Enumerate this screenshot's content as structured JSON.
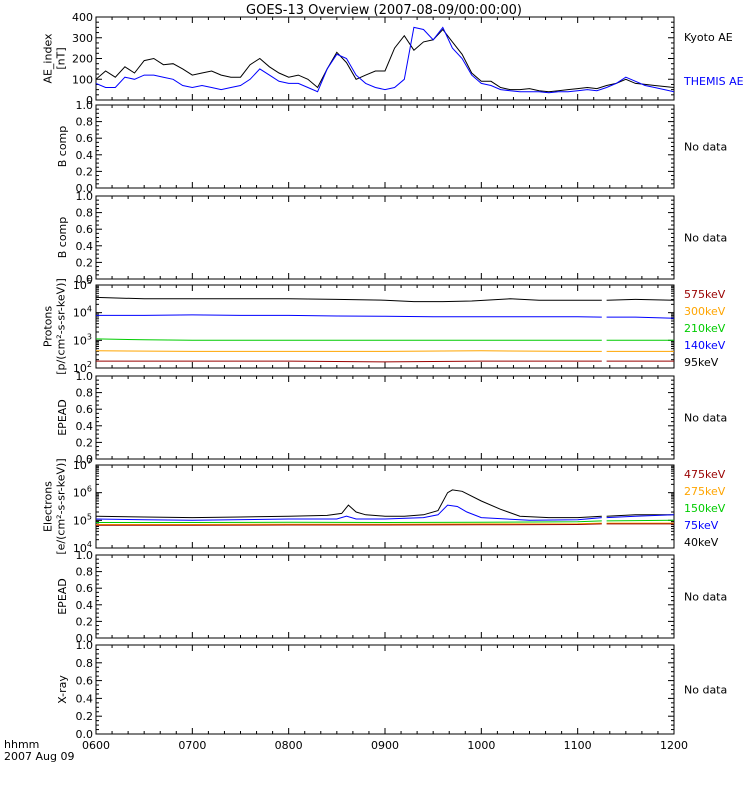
{
  "title": "GOES-13 Overview (2007-08-09/00:00:00)",
  "x_axis": {
    "ticks": [
      "0600",
      "0700",
      "0800",
      "0900",
      "1000",
      "1100",
      "1200"
    ],
    "start_hour": 6,
    "end_hour": 12,
    "label_line1": "hhmm",
    "label_line2": "2007 Aug 09"
  },
  "colors": {
    "black": "#000000",
    "blue": "#0000ff",
    "green": "#00cc00",
    "orange": "#ffa500",
    "darkred": "#990000"
  },
  "no_data_text": "No data",
  "chart_data": [
    {
      "id": "ae",
      "type": "line",
      "ylabel": [
        "AE_index",
        "[nT]"
      ],
      "ylim": [
        0,
        400
      ],
      "yscale": "linear",
      "yticks": [
        "0",
        "100",
        "200",
        "300",
        "400"
      ],
      "legend": [
        {
          "label": "Kyoto AE",
          "color": "#000000"
        },
        {
          "label": "THEMIS AE",
          "color": "#0000ff"
        }
      ],
      "series": [
        {
          "name": "Kyoto AE",
          "color": "#000000",
          "x": [
            6.0,
            6.1,
            6.2,
            6.3,
            6.4,
            6.5,
            6.6,
            6.7,
            6.8,
            6.9,
            7.0,
            7.1,
            7.2,
            7.3,
            7.4,
            7.5,
            7.6,
            7.7,
            7.8,
            7.9,
            8.0,
            8.1,
            8.2,
            8.3,
            8.4,
            8.5,
            8.6,
            8.7,
            8.8,
            8.9,
            9.0,
            9.1,
            9.2,
            9.3,
            9.4,
            9.5,
            9.6,
            9.7,
            9.8,
            9.9,
            10.0,
            10.1,
            10.2,
            10.3,
            10.4,
            10.5,
            10.6,
            10.7,
            10.8,
            10.9,
            11.0,
            11.1,
            11.2,
            11.3,
            11.4,
            11.5,
            11.6,
            11.7,
            11.8,
            11.9,
            12.0
          ],
          "values": [
            100,
            140,
            110,
            160,
            130,
            190,
            200,
            170,
            175,
            150,
            120,
            130,
            140,
            120,
            110,
            110,
            170,
            200,
            160,
            130,
            110,
            120,
            100,
            60,
            150,
            230,
            180,
            100,
            120,
            140,
            140,
            250,
            310,
            240,
            280,
            290,
            340,
            280,
            220,
            130,
            90,
            90,
            60,
            50,
            50,
            55,
            45,
            40,
            45,
            50,
            55,
            60,
            55,
            70,
            80,
            100,
            80,
            75,
            70,
            65,
            60
          ]
        },
        {
          "name": "THEMIS AE",
          "color": "#0000ff",
          "x": [
            6.0,
            6.1,
            6.2,
            6.3,
            6.4,
            6.5,
            6.6,
            6.7,
            6.8,
            6.9,
            7.0,
            7.1,
            7.2,
            7.3,
            7.4,
            7.5,
            7.6,
            7.7,
            7.8,
            7.9,
            8.0,
            8.1,
            8.2,
            8.3,
            8.4,
            8.5,
            8.6,
            8.7,
            8.8,
            8.9,
            9.0,
            9.1,
            9.2,
            9.3,
            9.4,
            9.5,
            9.6,
            9.7,
            9.8,
            9.9,
            10.0,
            10.1,
            10.2,
            10.3,
            10.4,
            10.5,
            10.6,
            10.7,
            10.8,
            10.9,
            11.0,
            11.1,
            11.2,
            11.3,
            11.4,
            11.5,
            11.6,
            11.7,
            11.8,
            11.9,
            12.0
          ],
          "values": [
            80,
            60,
            60,
            110,
            100,
            120,
            120,
            110,
            100,
            70,
            60,
            70,
            60,
            50,
            60,
            70,
            100,
            150,
            120,
            90,
            80,
            80,
            60,
            40,
            150,
            220,
            200,
            120,
            80,
            60,
            50,
            60,
            100,
            350,
            340,
            290,
            350,
            250,
            200,
            120,
            80,
            70,
            50,
            45,
            40,
            40,
            40,
            35,
            40,
            40,
            45,
            50,
            45,
            60,
            80,
            110,
            90,
            70,
            60,
            50,
            40
          ]
        }
      ]
    },
    {
      "id": "bcomp1",
      "type": "line",
      "empty": true,
      "ylabel": [
        "B comp"
      ],
      "ylim": [
        0,
        1
      ],
      "yscale": "linear",
      "yticks": [
        "0.0",
        "0.2",
        "0.4",
        "0.6",
        "0.8",
        "1.0"
      ]
    },
    {
      "id": "bcomp2",
      "type": "line",
      "empty": true,
      "ylabel": [
        "B comp"
      ],
      "ylim": [
        0,
        1
      ],
      "yscale": "linear",
      "yticks": [
        "0.0",
        "0.2",
        "0.4",
        "0.6",
        "0.8",
        "1.0"
      ]
    },
    {
      "id": "protons",
      "type": "line",
      "ylabel": [
        "Protons",
        "[p/(cm²-s-sr-keV)]"
      ],
      "ylim": [
        2,
        5
      ],
      "yscale": "log10",
      "yticks_log": [
        {
          "base": "10",
          "exp": "2"
        },
        {
          "base": "10",
          "exp": "3"
        },
        {
          "base": "10",
          "exp": "4"
        },
        {
          "base": "10",
          "exp": "5"
        }
      ],
      "legend": [
        {
          "label": "575keV",
          "color": "#990000"
        },
        {
          "label": "300keV",
          "color": "#ffa500"
        },
        {
          "label": "210keV",
          "color": "#00cc00"
        },
        {
          "label": "140keV",
          "color": "#0000ff"
        },
        {
          "label": "95keV",
          "color": "#000000"
        }
      ],
      "gap": [
        11.25,
        11.3
      ],
      "series": [
        {
          "name": "95keV",
          "color": "#000000",
          "x": [
            6.0,
            6.5,
            7.0,
            7.5,
            8.0,
            8.5,
            9.0,
            9.3,
            9.6,
            9.9,
            10.3,
            10.6,
            11.0,
            11.25,
            11.3,
            11.6,
            12.0
          ],
          "values": [
            4.55,
            4.5,
            4.5,
            4.5,
            4.5,
            4.48,
            4.45,
            4.4,
            4.4,
            4.42,
            4.5,
            4.45,
            4.45,
            4.45,
            4.45,
            4.48,
            4.45
          ]
        },
        {
          "name": "140keV",
          "color": "#0000ff",
          "x": [
            6.0,
            6.5,
            7.0,
            7.5,
            8.0,
            8.5,
            9.0,
            9.5,
            10.0,
            10.5,
            11.0,
            11.25,
            11.3,
            11.6,
            12.0
          ],
          "values": [
            3.9,
            3.9,
            3.92,
            3.9,
            3.9,
            3.88,
            3.87,
            3.85,
            3.85,
            3.85,
            3.85,
            3.84,
            3.84,
            3.84,
            3.8
          ]
        },
        {
          "name": "210keV",
          "color": "#00cc00",
          "x": [
            6.0,
            6.5,
            7.0,
            8.0,
            9.0,
            10.0,
            11.0,
            11.25,
            11.3,
            12.0
          ],
          "values": [
            3.05,
            3.02,
            3.0,
            3.0,
            3.0,
            3.0,
            3.0,
            3.0,
            3.0,
            3.0
          ]
        },
        {
          "name": "300keV",
          "color": "#ffa500",
          "x": [
            6.0,
            7.0,
            8.0,
            9.0,
            10.0,
            11.0,
            11.25,
            11.3,
            12.0
          ],
          "values": [
            2.62,
            2.6,
            2.6,
            2.6,
            2.62,
            2.6,
            2.6,
            2.6,
            2.6
          ]
        },
        {
          "name": "575keV",
          "color": "#990000",
          "x": [
            6.0,
            7.0,
            8.0,
            9.0,
            10.0,
            11.0,
            11.25,
            11.3,
            12.0
          ],
          "values": [
            2.25,
            2.25,
            2.25,
            2.22,
            2.25,
            2.25,
            2.25,
            2.25,
            2.25
          ]
        }
      ]
    },
    {
      "id": "epead1",
      "type": "line",
      "empty": true,
      "ylabel": [
        "EPEAD"
      ],
      "ylim": [
        0,
        1
      ],
      "yscale": "linear",
      "yticks": [
        "0.0",
        "0.2",
        "0.4",
        "0.6",
        "0.8",
        "1.0"
      ]
    },
    {
      "id": "electrons",
      "type": "line",
      "ylabel": [
        "Electrons",
        "[e/(cm²-s-sr-keV)]"
      ],
      "ylim": [
        4,
        7
      ],
      "yscale": "log10",
      "yticks_log": [
        {
          "base": "10",
          "exp": "4"
        },
        {
          "base": "10",
          "exp": "5"
        },
        {
          "base": "10",
          "exp": "6"
        },
        {
          "base": "10",
          "exp": "7"
        }
      ],
      "legend": [
        {
          "label": "475keV",
          "color": "#990000"
        },
        {
          "label": "275keV",
          "color": "#ffa500"
        },
        {
          "label": "150keV",
          "color": "#00cc00"
        },
        {
          "label": "75keV",
          "color": "#0000ff"
        },
        {
          "label": "40keV",
          "color": "#000000"
        }
      ],
      "gap": [
        11.25,
        11.3
      ],
      "series": [
        {
          "name": "40keV",
          "color": "#000000",
          "x": [
            6.0,
            6.5,
            7.0,
            7.5,
            8.0,
            8.4,
            8.55,
            8.62,
            8.7,
            8.8,
            9.0,
            9.2,
            9.4,
            9.55,
            9.65,
            9.7,
            9.8,
            10.0,
            10.2,
            10.4,
            10.7,
            11.0,
            11.25,
            11.3,
            11.6,
            12.0
          ],
          "values": [
            5.15,
            5.12,
            5.1,
            5.12,
            5.15,
            5.18,
            5.25,
            5.55,
            5.3,
            5.2,
            5.15,
            5.15,
            5.2,
            5.35,
            6.0,
            6.1,
            6.05,
            5.7,
            5.4,
            5.15,
            5.1,
            5.1,
            5.15,
            5.15,
            5.2,
            5.2
          ]
        },
        {
          "name": "75keV",
          "color": "#0000ff",
          "x": [
            6.0,
            6.5,
            7.0,
            8.0,
            8.5,
            8.6,
            8.7,
            9.0,
            9.4,
            9.55,
            9.65,
            9.75,
            9.85,
            10.0,
            10.5,
            11.0,
            11.25,
            11.3,
            11.6,
            12.0
          ],
          "values": [
            5.05,
            5.02,
            5.0,
            5.05,
            5.05,
            5.15,
            5.05,
            5.05,
            5.1,
            5.2,
            5.55,
            5.5,
            5.3,
            5.1,
            5.0,
            5.02,
            5.1,
            5.1,
            5.15,
            5.2
          ]
        },
        {
          "name": "150keV",
          "color": "#00cc00",
          "x": [
            6.0,
            7.0,
            8.0,
            9.0,
            10.0,
            11.0,
            11.25,
            11.3,
            12.0
          ],
          "values": [
            4.92,
            4.92,
            4.93,
            4.92,
            4.93,
            4.95,
            4.98,
            4.98,
            5.0
          ]
        },
        {
          "name": "275keV",
          "color": "#ffa500",
          "x": [
            6.0,
            7.0,
            8.0,
            9.0,
            10.0,
            11.0,
            11.25,
            11.3,
            12.0
          ],
          "values": [
            4.85,
            4.85,
            4.86,
            4.86,
            4.87,
            4.88,
            4.9,
            4.9,
            4.9
          ]
        },
        {
          "name": "475keV",
          "color": "#990000",
          "x": [
            6.0,
            7.0,
            8.0,
            9.0,
            10.0,
            11.0,
            11.25,
            11.3,
            12.0
          ],
          "values": [
            4.82,
            4.82,
            4.83,
            4.83,
            4.84,
            4.85,
            4.87,
            4.87,
            4.87
          ]
        }
      ]
    },
    {
      "id": "epead2",
      "type": "line",
      "empty": true,
      "ylabel": [
        "EPEAD"
      ],
      "ylim": [
        0,
        1
      ],
      "yscale": "linear",
      "yticks": [
        "0.0",
        "0.2",
        "0.4",
        "0.6",
        "0.8",
        "1.0"
      ]
    },
    {
      "id": "xray",
      "type": "line",
      "empty": true,
      "ylabel": [
        "X-ray"
      ],
      "ylim": [
        0,
        1
      ],
      "yscale": "linear",
      "yticks": [
        "0.0",
        "0.2",
        "0.4",
        "0.6",
        "0.8",
        "1.0"
      ]
    }
  ]
}
